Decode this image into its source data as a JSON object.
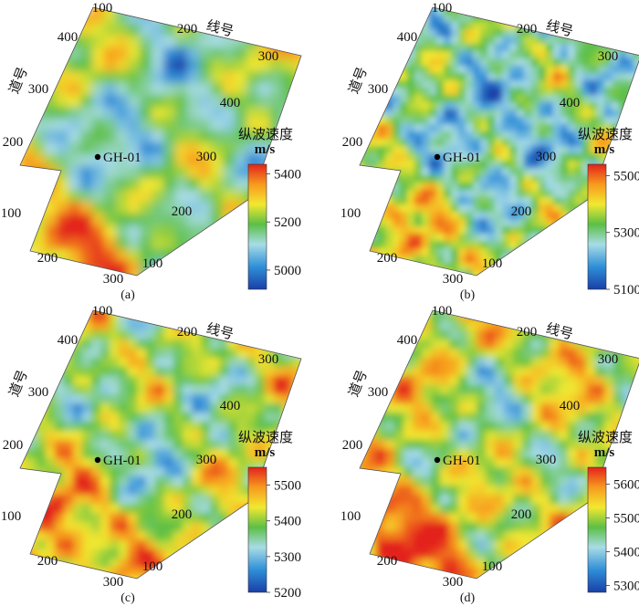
{
  "figure": {
    "panels": [
      {
        "id": "a",
        "panel_label": "(a)",
        "line_axis_label": "线号",
        "trace_axis_label": "道号",
        "well_label": "GH-01",
        "line_ticks_top": [
          "100",
          "200",
          "300"
        ],
        "line_ticks_right": [
          "400",
          "300",
          "200",
          "100"
        ],
        "trace_ticks_left": [
          "400",
          "300",
          "200",
          "100"
        ],
        "trace_ticks_bottom": [
          "200",
          "300"
        ],
        "legend": {
          "title": "纵波速度",
          "unit": "m/s",
          "ticks": [
            "5400",
            "5200",
            "5000"
          ],
          "range": [
            4920,
            5440
          ]
        }
      },
      {
        "id": "b",
        "panel_label": "(b)",
        "line_axis_label": "线号",
        "trace_axis_label": "道号",
        "well_label": "GH-01",
        "line_ticks_top": [
          "100",
          "200",
          "300"
        ],
        "line_ticks_right": [
          "400",
          "300",
          "200",
          "100"
        ],
        "trace_ticks_left": [
          "400",
          "300",
          "200",
          "100"
        ],
        "trace_ticks_bottom": [
          "200",
          "300"
        ],
        "legend": {
          "title": "纵波速度",
          "unit": "m/s",
          "ticks": [
            "5500",
            "5300",
            "5100"
          ],
          "range": [
            5100,
            5540
          ]
        }
      },
      {
        "id": "c",
        "panel_label": "(c)",
        "line_axis_label": "线号",
        "trace_axis_label": "道号",
        "well_label": "GH-01",
        "line_ticks_top": [
          "100",
          "200",
          "300"
        ],
        "line_ticks_right": [
          "400",
          "300",
          "200",
          "100"
        ],
        "trace_ticks_left": [
          "400",
          "300",
          "200",
          "100"
        ],
        "trace_ticks_bottom": [
          "200",
          "300"
        ],
        "legend": {
          "title": "纵波速度",
          "unit": "m/s",
          "ticks": [
            "5500",
            "5400",
            "5300",
            "5200"
          ],
          "range": [
            5200,
            5550
          ]
        }
      },
      {
        "id": "d",
        "panel_label": "(d)",
        "line_axis_label": "线号",
        "trace_axis_label": "道号",
        "well_label": "GH-01",
        "line_ticks_top": [
          "100",
          "200",
          "300"
        ],
        "line_ticks_right": [
          "400",
          "300",
          "200",
          "100"
        ],
        "trace_ticks_left": [
          "400",
          "300",
          "200",
          "100"
        ],
        "trace_ticks_bottom": [
          "200",
          "300"
        ],
        "legend": {
          "title": "纵波速度",
          "unit": "m/s",
          "ticks": [
            "5600",
            "5500",
            "5400",
            "5300"
          ],
          "range": [
            5280,
            5650
          ]
        }
      }
    ],
    "colormap": [
      "#1a3fa8",
      "#2f8fd8",
      "#a8dce6",
      "#5bbf45",
      "#f2e830",
      "#f79a1e",
      "#e3221c"
    ]
  }
}
